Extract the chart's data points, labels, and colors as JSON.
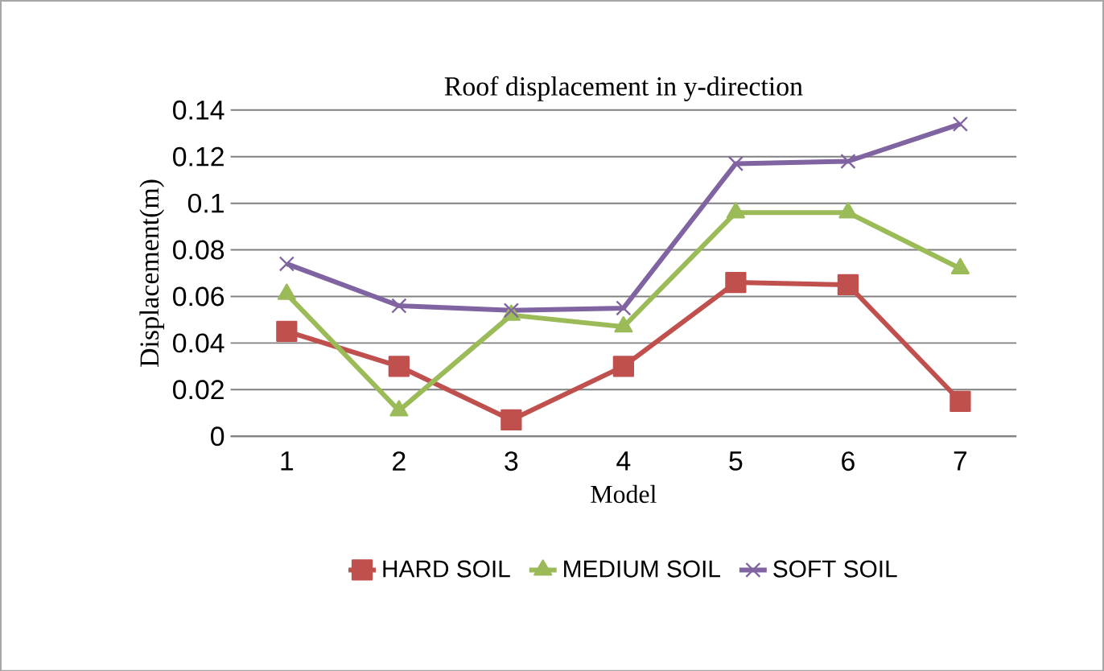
{
  "chart_data": {
    "type": "line",
    "title": "Roof displacement in y-direction",
    "xlabel": "Model",
    "ylabel": "Displacement(m)",
    "categories": [
      "1",
      "2",
      "3",
      "4",
      "5",
      "6",
      "7"
    ],
    "series": [
      {
        "name": "HARD SOIL",
        "color": "#c0504d",
        "marker": "square",
        "values": [
          0.045,
          0.03,
          0.007,
          0.03,
          0.066,
          0.065,
          0.015
        ]
      },
      {
        "name": "MEDIUM SOIL",
        "color": "#9bbb59",
        "marker": "triangle",
        "values": [
          0.061,
          0.011,
          0.052,
          0.047,
          0.096,
          0.096,
          0.072
        ]
      },
      {
        "name": "SOFT SOIL",
        "color": "#8064a2",
        "marker": "cross",
        "values": [
          0.074,
          0.056,
          0.054,
          0.055,
          0.117,
          0.118,
          0.134
        ]
      }
    ],
    "ylim": [
      0,
      0.14
    ],
    "yticks": [
      0,
      0.02,
      0.04,
      0.06,
      0.08,
      0.1,
      0.12,
      0.14
    ],
    "grid": "y",
    "legend": "bottom",
    "line_style": "solid"
  }
}
